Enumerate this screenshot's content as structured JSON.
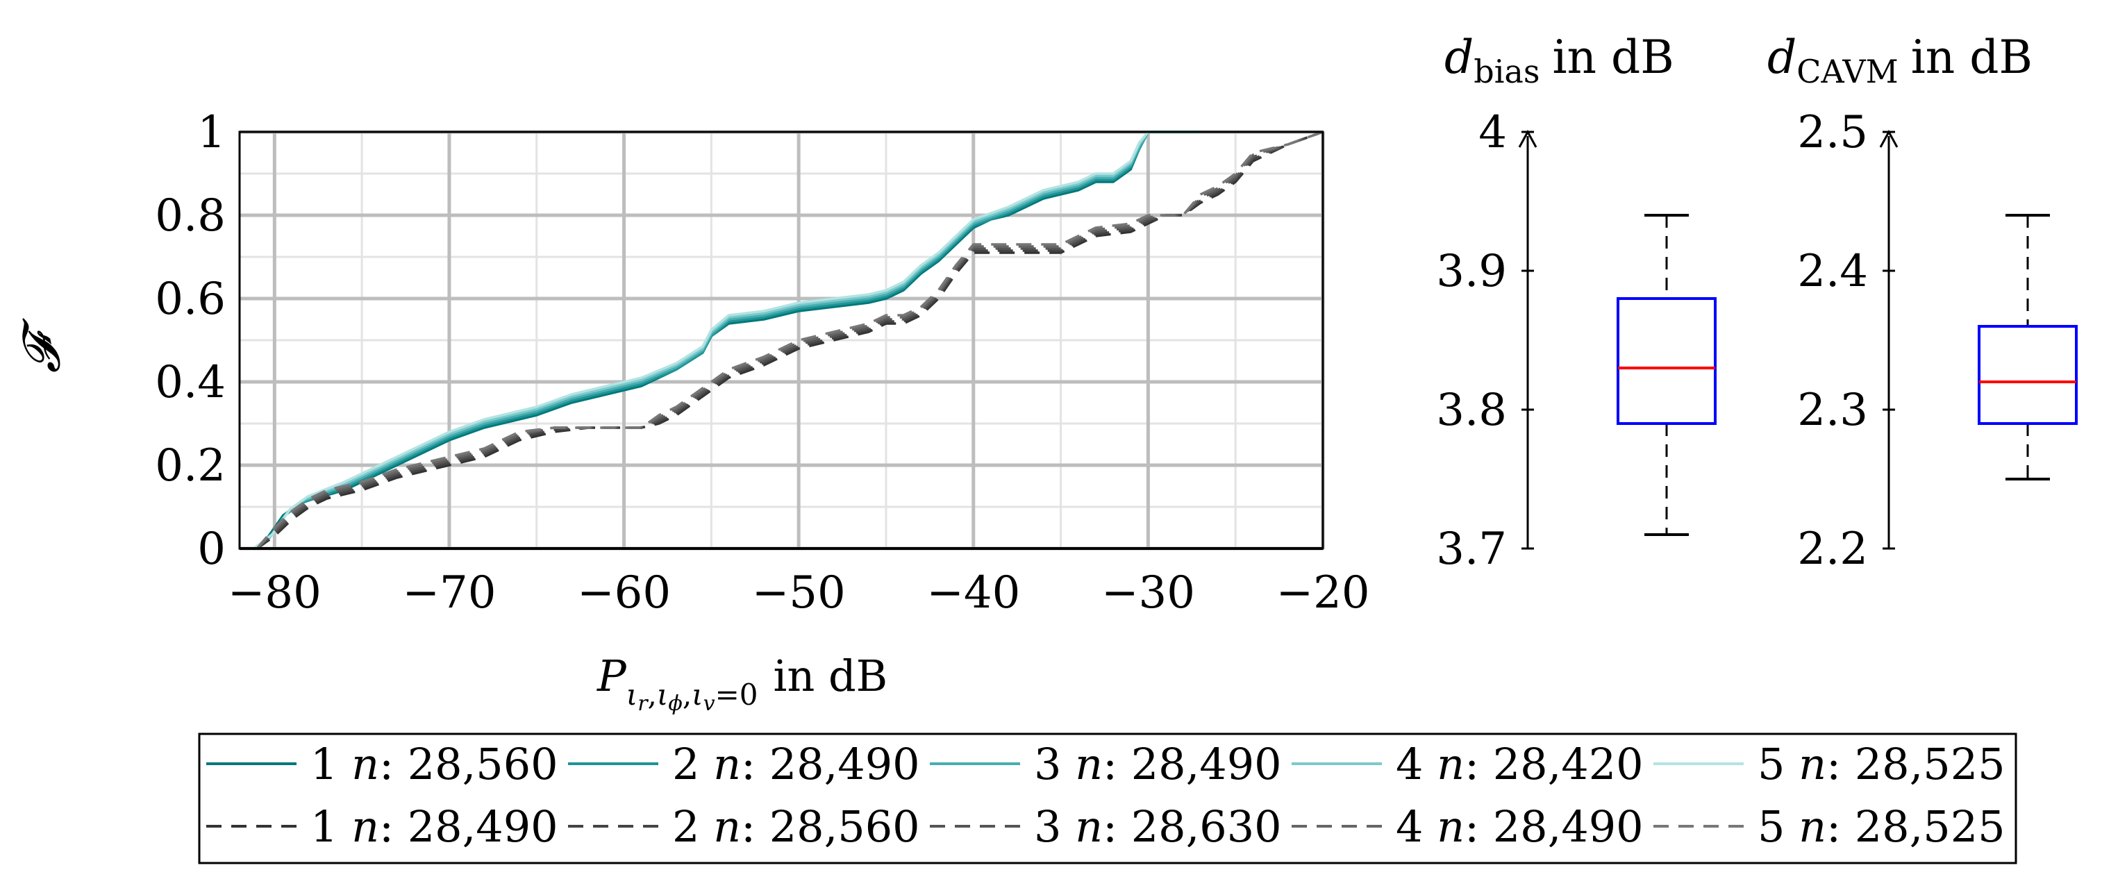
{
  "chart_data": [
    {
      "type": "line",
      "title": "",
      "ylabel": "𝓕",
      "xlabel": {
        "base": "P",
        "subscript": "ι",
        "r": "r",
        "phi": "ϕ",
        "v": "v",
        "eq": "=0",
        "unit": "in dB"
      },
      "xlim": [
        -82,
        -20
      ],
      "ylim": [
        0,
        1
      ],
      "xticks": [
        -80,
        -70,
        -60,
        -50,
        -40,
        -30,
        -20
      ],
      "xtick_labels": [
        "−80",
        "−70",
        "−60",
        "−50",
        "−40",
        "−30",
        "−20"
      ],
      "yticks": [
        0,
        0.2,
        0.4,
        0.6,
        0.8,
        1
      ],
      "ytick_labels": [
        "0",
        "0.2",
        "0.4",
        "0.6",
        "0.8",
        "1"
      ],
      "grid": true,
      "legend_position": "below",
      "series": [
        {
          "name": "1",
          "n_label": "n",
          "n_value": ": 28,560",
          "style": "solid",
          "color": "#00787a",
          "x": [
            -81.2,
            -80.5,
            -79.5,
            -78.5,
            -76,
            -74,
            -72,
            -70,
            -68,
            -67,
            -65,
            -63,
            -61,
            -59,
            -57,
            -55.5,
            -55,
            -54,
            -52,
            -50,
            -48,
            -46,
            -45,
            -44,
            -43,
            -42,
            -41,
            -40,
            -39,
            -38,
            -37,
            -36,
            -34,
            -33,
            -32,
            -31,
            -30.5,
            -30,
            -27
          ],
          "y": [
            0,
            0.02,
            0.08,
            0.11,
            0.14,
            0.18,
            0.22,
            0.26,
            0.29,
            0.3,
            0.32,
            0.35,
            0.37,
            0.39,
            0.43,
            0.47,
            0.51,
            0.54,
            0.55,
            0.57,
            0.58,
            0.59,
            0.6,
            0.62,
            0.66,
            0.69,
            0.73,
            0.77,
            0.79,
            0.8,
            0.82,
            0.84,
            0.86,
            0.88,
            0.88,
            0.91,
            0.96,
            1,
            1
          ]
        },
        {
          "name": "2",
          "n_label": "n",
          "n_value": ": 28,490",
          "style": "solid",
          "color": "#1f9496",
          "x": [
            -81.2,
            -80.4,
            -79.4,
            -78.4,
            -76,
            -74,
            -72,
            -70,
            -68,
            -67,
            -65,
            -63,
            -61,
            -59,
            -57,
            -55.5,
            -55,
            -54,
            -52,
            -50,
            -48,
            -46,
            -45,
            -44,
            -43,
            -42,
            -41,
            -40,
            -39,
            -38,
            -37,
            -36,
            -34,
            -33,
            -32,
            -31,
            -30.5,
            -30,
            -27
          ],
          "y": [
            0,
            0.02,
            0.08,
            0.11,
            0.145,
            0.185,
            0.225,
            0.265,
            0.295,
            0.305,
            0.325,
            0.355,
            0.375,
            0.395,
            0.43,
            0.47,
            0.51,
            0.545,
            0.555,
            0.575,
            0.585,
            0.595,
            0.605,
            0.625,
            0.665,
            0.695,
            0.735,
            0.775,
            0.79,
            0.805,
            0.825,
            0.845,
            0.865,
            0.885,
            0.885,
            0.915,
            0.96,
            1,
            1
          ]
        },
        {
          "name": "3",
          "n_label": "n",
          "n_value": ": 28,490",
          "style": "solid",
          "color": "#49aeb0",
          "x": [
            -81.2,
            -80.3,
            -79.3,
            -78.3,
            -76,
            -74,
            -72,
            -70,
            -68,
            -67,
            -65,
            -63,
            -61,
            -59,
            -57,
            -55.5,
            -55,
            -54,
            -52,
            -50,
            -48,
            -46,
            -45,
            -44,
            -43,
            -42,
            -41,
            -40,
            -39,
            -38,
            -37,
            -36,
            -34,
            -33,
            -32,
            -31,
            -30.5,
            -30,
            -27
          ],
          "y": [
            0,
            0.025,
            0.085,
            0.115,
            0.15,
            0.19,
            0.23,
            0.27,
            0.3,
            0.31,
            0.33,
            0.36,
            0.38,
            0.4,
            0.435,
            0.475,
            0.515,
            0.55,
            0.56,
            0.58,
            0.59,
            0.6,
            0.61,
            0.63,
            0.67,
            0.7,
            0.74,
            0.78,
            0.795,
            0.81,
            0.83,
            0.85,
            0.87,
            0.89,
            0.89,
            0.92,
            0.965,
            1,
            1
          ]
        },
        {
          "name": "4",
          "n_label": "n",
          "n_value": ": 28,420",
          "style": "solid",
          "color": "#7cc9cb",
          "x": [
            -81.2,
            -80.2,
            -79.2,
            -78.2,
            -76,
            -74,
            -72,
            -70,
            -68,
            -67,
            -65,
            -63,
            -61,
            -59,
            -57,
            -55.5,
            -55,
            -54,
            -52,
            -50,
            -48,
            -46,
            -45,
            -44,
            -43,
            -42,
            -41,
            -40,
            -39,
            -38,
            -37,
            -36,
            -34,
            -33,
            -32,
            -31,
            -30.5,
            -30,
            -27
          ],
          "y": [
            0,
            0.03,
            0.09,
            0.12,
            0.155,
            0.195,
            0.235,
            0.275,
            0.305,
            0.315,
            0.335,
            0.365,
            0.385,
            0.405,
            0.44,
            0.48,
            0.52,
            0.555,
            0.565,
            0.585,
            0.595,
            0.605,
            0.615,
            0.635,
            0.675,
            0.705,
            0.745,
            0.785,
            0.8,
            0.815,
            0.835,
            0.855,
            0.875,
            0.895,
            0.895,
            0.925,
            0.97,
            1,
            1
          ]
        },
        {
          "name": "5",
          "n_label": "n",
          "n_value": ": 28,525",
          "style": "solid",
          "color": "#b3e3e3",
          "x": [
            -81.2,
            -80.1,
            -79.1,
            -78.1,
            -76,
            -74,
            -72,
            -70,
            -68,
            -67,
            -65,
            -63,
            -61,
            -59,
            -57,
            -55.5,
            -55,
            -54,
            -52,
            -50,
            -48,
            -46,
            -45,
            -44,
            -43,
            -42,
            -41,
            -40,
            -39,
            -38,
            -37,
            -36,
            -34,
            -33,
            -32,
            -31,
            -30.5,
            -30,
            -27
          ],
          "y": [
            0,
            0.035,
            0.095,
            0.125,
            0.16,
            0.2,
            0.24,
            0.28,
            0.31,
            0.32,
            0.34,
            0.37,
            0.39,
            0.41,
            0.445,
            0.485,
            0.525,
            0.56,
            0.57,
            0.59,
            0.6,
            0.61,
            0.62,
            0.64,
            0.68,
            0.71,
            0.75,
            0.79,
            0.805,
            0.82,
            0.84,
            0.86,
            0.88,
            0.9,
            0.9,
            0.93,
            0.975,
            1,
            1
          ]
        },
        {
          "name": "1",
          "n_label": "n",
          "n_value": ": 28,490",
          "style": "dashed",
          "color": "#333333",
          "x": [
            -81,
            -80,
            -79,
            -78,
            -77,
            -75,
            -73,
            -71,
            -70,
            -68,
            -66,
            -64,
            -62,
            -60,
            -59,
            -58,
            -57,
            -56,
            -55,
            -54,
            -52,
            -50,
            -48,
            -46,
            -45,
            -44,
            -43,
            -42,
            -41,
            -40,
            -38,
            -36,
            -35,
            -34,
            -33,
            -31,
            -30,
            -29,
            -28,
            -27,
            -26,
            -25,
            -24,
            -22,
            -20
          ],
          "y": [
            0,
            0.03,
            0.07,
            0.1,
            0.12,
            0.14,
            0.17,
            0.19,
            0.2,
            0.22,
            0.26,
            0.28,
            0.29,
            0.29,
            0.29,
            0.3,
            0.32,
            0.35,
            0.38,
            0.41,
            0.44,
            0.48,
            0.5,
            0.52,
            0.54,
            0.54,
            0.56,
            0.6,
            0.66,
            0.71,
            0.71,
            0.71,
            0.71,
            0.73,
            0.75,
            0.76,
            0.78,
            0.8,
            0.8,
            0.83,
            0.85,
            0.88,
            0.93,
            0.97,
            1
          ]
        },
        {
          "name": "2",
          "n_label": "n",
          "n_value": ": 28,560",
          "style": "dashed",
          "color": "#444444",
          "x": [
            -81,
            -80,
            -79,
            -78,
            -77,
            -75,
            -73,
            -71,
            -70,
            -68,
            -66,
            -64,
            -62,
            -60,
            -59,
            -58,
            -57,
            -56,
            -55,
            -54,
            -52,
            -50,
            -48,
            -46,
            -45,
            -44,
            -43,
            -42,
            -41,
            -40,
            -38,
            -36,
            -35,
            -34,
            -33,
            -31,
            -30,
            -29,
            -28,
            -27,
            -26,
            -25,
            -24,
            -22,
            -20
          ],
          "y": [
            0,
            0.035,
            0.075,
            0.105,
            0.125,
            0.145,
            0.175,
            0.195,
            0.205,
            0.225,
            0.265,
            0.285,
            0.29,
            0.29,
            0.29,
            0.305,
            0.325,
            0.355,
            0.385,
            0.415,
            0.445,
            0.485,
            0.505,
            0.525,
            0.545,
            0.545,
            0.565,
            0.605,
            0.665,
            0.715,
            0.715,
            0.715,
            0.715,
            0.735,
            0.755,
            0.765,
            0.785,
            0.8,
            0.8,
            0.835,
            0.855,
            0.885,
            0.935,
            0.97,
            1
          ]
        },
        {
          "name": "3",
          "n_label": "n",
          "n_value": ": 28,630",
          "style": "dashed",
          "color": "#555555",
          "x": [
            -81,
            -80,
            -79,
            -78,
            -77,
            -75,
            -73,
            -71,
            -70,
            -68,
            -66,
            -64,
            -62,
            -60,
            -59,
            -58,
            -57,
            -56,
            -55,
            -54,
            -52,
            -50,
            -48,
            -46,
            -45,
            -44,
            -43,
            -42,
            -41,
            -40,
            -38,
            -36,
            -35,
            -34,
            -33,
            -31,
            -30,
            -29,
            -28,
            -27,
            -26,
            -25,
            -24,
            -22,
            -20
          ],
          "y": [
            0,
            0.04,
            0.08,
            0.11,
            0.13,
            0.15,
            0.18,
            0.2,
            0.21,
            0.23,
            0.27,
            0.29,
            0.29,
            0.29,
            0.29,
            0.31,
            0.33,
            0.36,
            0.39,
            0.42,
            0.45,
            0.49,
            0.51,
            0.53,
            0.55,
            0.55,
            0.57,
            0.61,
            0.67,
            0.72,
            0.72,
            0.72,
            0.72,
            0.74,
            0.76,
            0.77,
            0.79,
            0.8,
            0.8,
            0.84,
            0.86,
            0.89,
            0.94,
            0.97,
            1
          ]
        },
        {
          "name": "4",
          "n_label": "n",
          "n_value": ": 28,490",
          "style": "dashed",
          "color": "#666666",
          "x": [
            -81,
            -80,
            -79,
            -78,
            -77,
            -75,
            -73,
            -71,
            -70,
            -68,
            -66,
            -64,
            -62,
            -60,
            -59,
            -58,
            -57,
            -56,
            -55,
            -54,
            -52,
            -50,
            -48,
            -46,
            -45,
            -44,
            -43,
            -42,
            -41,
            -40,
            -38,
            -36,
            -35,
            -34,
            -33,
            -31,
            -30,
            -29,
            -28,
            -27,
            -26,
            -25,
            -24,
            -22,
            -20
          ],
          "y": [
            0,
            0.045,
            0.085,
            0.115,
            0.135,
            0.155,
            0.185,
            0.205,
            0.215,
            0.235,
            0.275,
            0.29,
            0.29,
            0.29,
            0.29,
            0.315,
            0.335,
            0.365,
            0.395,
            0.425,
            0.455,
            0.495,
            0.515,
            0.535,
            0.555,
            0.555,
            0.575,
            0.615,
            0.675,
            0.725,
            0.725,
            0.725,
            0.725,
            0.745,
            0.765,
            0.775,
            0.795,
            0.8,
            0.8,
            0.845,
            0.865,
            0.895,
            0.945,
            0.97,
            1
          ]
        },
        {
          "name": "5",
          "n_label": "n",
          "n_value": ": 28,525",
          "style": "dashed",
          "color": "#777777",
          "x": [
            -81,
            -80,
            -79,
            -78,
            -77,
            -75,
            -73,
            -71,
            -70,
            -68,
            -66,
            -64,
            -62,
            -60,
            -59,
            -58,
            -57,
            -56,
            -55,
            -54,
            -52,
            -50,
            -48,
            -46,
            -45,
            -44,
            -43,
            -42,
            -41,
            -40,
            -38,
            -36,
            -35,
            -34,
            -33,
            -31,
            -30,
            -29,
            -28,
            -27,
            -26,
            -25,
            -24,
            -22,
            -20
          ],
          "y": [
            0,
            0.05,
            0.09,
            0.12,
            0.14,
            0.16,
            0.19,
            0.21,
            0.22,
            0.24,
            0.28,
            0.29,
            0.29,
            0.29,
            0.29,
            0.32,
            0.34,
            0.37,
            0.4,
            0.43,
            0.46,
            0.5,
            0.52,
            0.54,
            0.56,
            0.56,
            0.58,
            0.62,
            0.68,
            0.73,
            0.73,
            0.73,
            0.73,
            0.75,
            0.77,
            0.78,
            0.8,
            0.8,
            0.8,
            0.85,
            0.87,
            0.9,
            0.95,
            0.97,
            1
          ]
        }
      ]
    },
    {
      "type": "box",
      "title": {
        "var": "d",
        "sub": "bias",
        "unit": "in dB"
      },
      "ylim": [
        3.7,
        4
      ],
      "yticks": [
        3.7,
        3.8,
        3.9,
        4
      ],
      "ytick_labels": [
        "3.7",
        "3.8",
        "3.9",
        "4"
      ],
      "box": {
        "min": 3.71,
        "q1": 3.79,
        "median": 3.83,
        "q3": 3.88,
        "max": 3.94
      },
      "box_color": "#0000ff",
      "median_color": "#ff0000"
    },
    {
      "type": "box",
      "title": {
        "var": "d",
        "sub": "CAVM",
        "unit": "in dB"
      },
      "ylim": [
        2.2,
        2.5
      ],
      "yticks": [
        2.2,
        2.3,
        2.4,
        2.5
      ],
      "ytick_labels": [
        "2.2",
        "2.3",
        "2.4",
        "2.5"
      ],
      "box": {
        "min": 2.25,
        "q1": 2.29,
        "median": 2.32,
        "q3": 2.36,
        "max": 2.44
      },
      "box_color": "#0000ff",
      "median_color": "#ff0000"
    }
  ]
}
